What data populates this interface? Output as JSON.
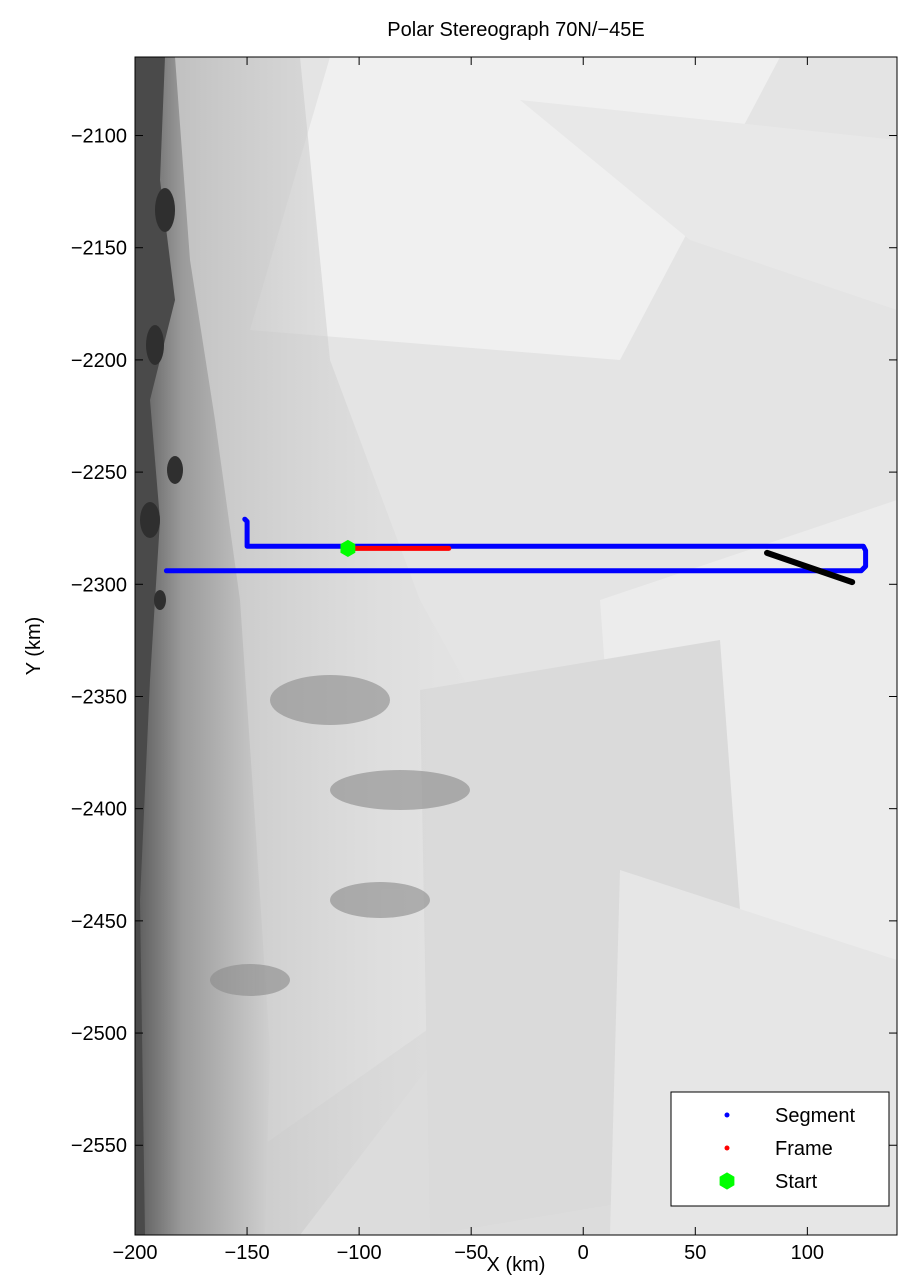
{
  "figure": {
    "title": "Polar Stereograph 70N/−45E",
    "xlabel": "X (km)",
    "ylabel": "Y (km)"
  },
  "map": {
    "projection": "Polar Stereograph 70N/−45E",
    "basemap": "grayscale satellite imagery",
    "xlim": [
      -200,
      140
    ],
    "ylim": [
      -2590,
      -2065
    ],
    "x_tick_values": [
      -200,
      -150,
      -100,
      -50,
      0,
      50,
      100
    ],
    "x_tick_labels": [
      "−200",
      "−150",
      "−100",
      "−50",
      "0",
      "50",
      "100"
    ],
    "y_tick_values": [
      -2100,
      -2150,
      -2200,
      -2250,
      -2300,
      -2350,
      -2400,
      -2450,
      -2500,
      -2550
    ],
    "y_tick_labels": [
      "−2100",
      "−2150",
      "−2200",
      "−2250",
      "−2300",
      "−2350",
      "−2400",
      "−2450",
      "−2500",
      "−2550"
    ]
  },
  "chart_data": {
    "type": "line",
    "xlim": [
      -200,
      140
    ],
    "ylim": [
      -2590,
      -2065
    ],
    "grid": false,
    "legend_position": "bottom-right",
    "series": [
      {
        "name": "Segment",
        "color": "#0000ff",
        "x": [
          -151,
          -150,
          -150,
          125,
          126,
          126,
          124,
          -186
        ],
        "y": [
          -2271,
          -2272,
          -2283,
          -2283,
          -2285,
          -2292,
          -2294,
          -2294
        ]
      },
      {
        "name": "Frame",
        "color": "#ff0000",
        "x": [
          -103,
          -60
        ],
        "y": [
          -2284,
          -2284
        ]
      },
      {
        "name": "Start",
        "color": "#00ff00",
        "marker": "hexagon",
        "x": [
          -105
        ],
        "y": [
          -2284
        ]
      },
      {
        "color": "#000000",
        "x": [
          82,
          120
        ],
        "y": [
          -2286,
          -2299
        ]
      }
    ]
  },
  "legend": {
    "items": [
      {
        "label": "Segment",
        "color": "#0000ff",
        "marker": "dot"
      },
      {
        "label": "Frame",
        "color": "#ff0000",
        "marker": "dot"
      },
      {
        "label": "Start",
        "color": "#00ff00",
        "marker": "hexagon"
      }
    ]
  }
}
